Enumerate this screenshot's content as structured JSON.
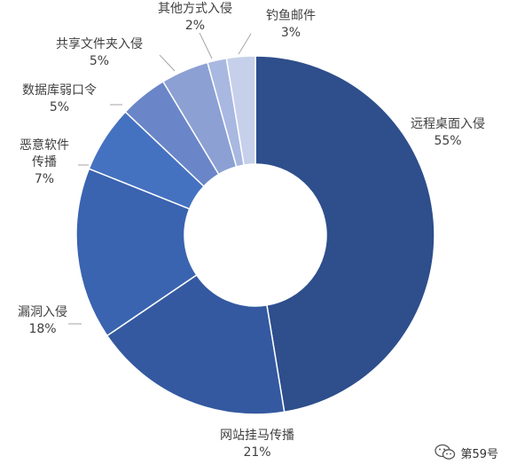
{
  "chart_data": {
    "type": "pie",
    "style": "donut",
    "categories": [
      "远程桌面入侵",
      "网站挂马传播",
      "漏洞入侵",
      "恶意软件传播",
      "数据库弱口令",
      "共享文件夹入侵",
      "其他方式入侵",
      "钓鱼邮件"
    ],
    "values": [
      55,
      21,
      18,
      7,
      5,
      5,
      2,
      3
    ],
    "value_labels": [
      "55%",
      "21%",
      "18%",
      "7%",
      "5%",
      "5%",
      "2%",
      "3%"
    ],
    "label_lines": [
      [
        "远程桌面入侵",
        "55%"
      ],
      [
        "网站挂马传播",
        "21%"
      ],
      [
        "漏洞入侵",
        "18%"
      ],
      [
        "恶意软件",
        "传播",
        "7%"
      ],
      [
        "数据库弱口令",
        "5%"
      ],
      [
        "共享文件夹入侵",
        "5%"
      ],
      [
        "其他方式入侵",
        "2%"
      ],
      [
        "钓鱼邮件",
        "3%"
      ]
    ],
    "colors": [
      "#2e4e8c",
      "#3459a0",
      "#3a63b0",
      "#4572c0",
      "#6a86c8",
      "#8ca0d4",
      "#a8b8e0",
      "#c7d0ea"
    ],
    "legend": "none",
    "title": ""
  },
  "watermark": {
    "text": "第59号"
  }
}
